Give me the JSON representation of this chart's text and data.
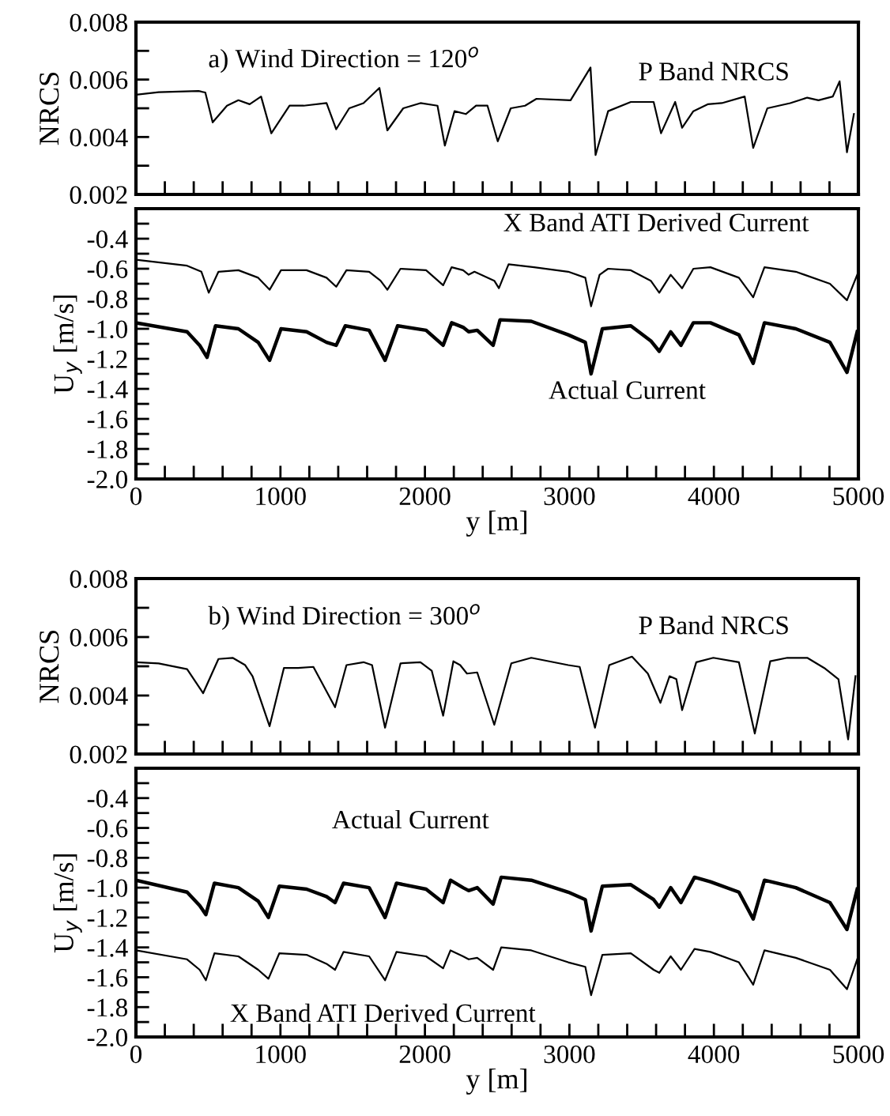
{
  "chart_data": [
    {
      "type": "line",
      "title": "a) Wind Direction = 120$^{o}$",
      "ylabel": "NRCS",
      "tick_labels": "y",
      "xlim": [
        0,
        5000
      ],
      "xticks": [
        0,
        {
          "value": 200,
          "label": null
        },
        {
          "value": 400,
          "label": null
        },
        {
          "value": 600,
          "label": null
        },
        {
          "value": 800,
          "label": null
        },
        1000,
        {
          "value": 1200,
          "label": null
        },
        {
          "value": 1400,
          "label": null
        },
        {
          "value": 1600,
          "label": null
        },
        {
          "value": 1800,
          "label": null
        },
        2000,
        {
          "value": 2200,
          "label": null
        },
        {
          "value": 2400,
          "label": null
        },
        {
          "value": 2600,
          "label": null
        },
        {
          "value": 2800,
          "label": null
        },
        3000,
        {
          "value": 3200,
          "label": null
        },
        {
          "value": 3400,
          "label": null
        },
        {
          "value": 3600,
          "label": null
        },
        {
          "value": 3800,
          "label": null
        },
        4000,
        {
          "value": 4200,
          "label": null
        },
        {
          "value": 4400,
          "label": null
        },
        {
          "value": 4600,
          "label": null
        },
        {
          "value": 4800,
          "label": null
        },
        5000
      ],
      "ylim": [
        0.002,
        0.008
      ],
      "yticks": [
        0.002,
        {
          "value": 0.003,
          "label": null
        },
        0.004,
        {
          "value": 0.005,
          "label": null
        },
        0.006,
        {
          "value": 0.007,
          "label": null
        },
        0.008
      ],
      "series": [
        {
          "name": "P Band NRCS",
          "color": "#000000",
          "x": [
            0,
            157,
            433,
            480,
            531,
            630,
            709,
            787,
            866,
            937,
            1063,
            1161,
            1319,
            1386,
            1476,
            1575,
            1685,
            1740,
            1850,
            1969,
            2087,
            2138,
            2205,
            2283,
            2354,
            2433,
            2504,
            2594,
            2693,
            2772,
            3008,
            3146,
            3181,
            3268,
            3425,
            3583,
            3634,
            3732,
            3780,
            3858,
            3957,
            4055,
            4213,
            4272,
            4370,
            4528,
            4646,
            4724,
            4823,
            4870,
            4921,
            4969
          ],
          "values": [
            0.00547,
            0.00556,
            0.0056,
            0.00555,
            0.00451,
            0.00509,
            0.00528,
            0.00514,
            0.00541,
            0.00413,
            0.00509,
            0.00509,
            0.00518,
            0.00427,
            0.005,
            0.00518,
            0.00571,
            0.00423,
            0.005,
            0.00518,
            0.00509,
            0.0037,
            0.0049,
            0.0048,
            0.00509,
            0.00509,
            0.00385,
            0.005,
            0.00509,
            0.00533,
            0.00528,
            0.00642,
            0.00337,
            0.0049,
            0.00522,
            0.00522,
            0.00413,
            0.00522,
            0.00432,
            0.0049,
            0.00514,
            0.00518,
            0.00541,
            0.00362,
            0.005,
            0.00518,
            0.00537,
            0.00528,
            0.00541,
            0.00594,
            0.00347,
            0.0048
          ]
        }
      ]
    },
    {
      "type": "line",
      "xlabel": "y [m]",
      "ylabel": "U$_{y}$ [m/s]",
      "xlim": [
        0,
        5000
      ],
      "xticks": [
        0,
        {
          "value": 200,
          "label": null
        },
        {
          "value": 400,
          "label": null
        },
        {
          "value": 600,
          "label": null
        },
        {
          "value": 800,
          "label": null
        },
        1000,
        {
          "value": 1200,
          "label": null
        },
        {
          "value": 1400,
          "label": null
        },
        {
          "value": 1600,
          "label": null
        },
        {
          "value": 1800,
          "label": null
        },
        2000,
        {
          "value": 2200,
          "label": null
        },
        {
          "value": 2400,
          "label": null
        },
        {
          "value": 2600,
          "label": null
        },
        {
          "value": 2800,
          "label": null
        },
        3000,
        {
          "value": 3200,
          "label": null
        },
        {
          "value": 3400,
          "label": null
        },
        {
          "value": 3600,
          "label": null
        },
        {
          "value": 3800,
          "label": null
        },
        4000,
        {
          "value": 4200,
          "label": null
        },
        {
          "value": 4400,
          "label": null
        },
        {
          "value": 4600,
          "label": null
        },
        {
          "value": 4800,
          "label": null
        },
        5000
      ],
      "ylim": [
        -2.0,
        -0.2
      ],
      "yticks": [
        {
          "value": -2.0,
          "label": "-2.0"
        },
        {
          "value": -1.9,
          "label": null
        },
        -1.8,
        {
          "value": -1.7,
          "label": null
        },
        -1.6,
        {
          "value": -1.5,
          "label": null
        },
        -1.4,
        {
          "value": -1.3,
          "label": null
        },
        -1.2,
        {
          "value": -1.1,
          "label": null
        },
        {
          "value": -1.0,
          "label": "-1.0"
        },
        {
          "value": -0.9,
          "label": null
        },
        -0.8,
        {
          "value": -0.7,
          "label": null
        },
        -0.6,
        {
          "value": -0.5,
          "label": null
        },
        -0.4,
        {
          "value": -0.3,
          "label": null
        }
      ],
      "series": [
        {
          "name": "X Band ATI Derived Current",
          "color": "#000000",
          "x": [
            0,
            354,
            453,
            504,
            571,
            709,
            846,
            925,
            1004,
            1181,
            1319,
            1386,
            1457,
            1614,
            1693,
            1740,
            1831,
            2008,
            2126,
            2185,
            2264,
            2303,
            2343,
            2480,
            2512,
            2579,
            2756,
            2992,
            3110,
            3150,
            3209,
            3268,
            3425,
            3563,
            3622,
            3701,
            3780,
            3858,
            3976,
            4173,
            4272,
            4350,
            4567,
            4803,
            4921,
            4992
          ],
          "values": [
            -0.54,
            -0.58,
            -0.62,
            -0.76,
            -0.62,
            -0.61,
            -0.66,
            -0.74,
            -0.61,
            -0.61,
            -0.66,
            -0.72,
            -0.61,
            -0.62,
            -0.68,
            -0.74,
            -0.6,
            -0.61,
            -0.71,
            -0.59,
            -0.61,
            -0.64,
            -0.62,
            -0.68,
            -0.73,
            -0.57,
            -0.59,
            -0.62,
            -0.66,
            -0.85,
            -0.64,
            -0.6,
            -0.61,
            -0.68,
            -0.76,
            -0.64,
            -0.73,
            -0.6,
            -0.59,
            -0.66,
            -0.79,
            -0.59,
            -0.62,
            -0.7,
            -0.81,
            -0.64
          ]
        },
        {
          "name": "Actual Current",
          "color": "#000000",
          "x": [
            0,
            354,
            441,
            492,
            551,
            709,
            846,
            925,
            1004,
            1181,
            1319,
            1386,
            1449,
            1614,
            1724,
            1811,
            2008,
            2126,
            2185,
            2264,
            2303,
            2362,
            2472,
            2520,
            2736,
            2992,
            3110,
            3150,
            3228,
            3425,
            3563,
            3622,
            3701,
            3772,
            3858,
            3976,
            4173,
            4272,
            4350,
            4567,
            4803,
            4921,
            4992
          ],
          "values": [
            -0.96,
            -1.02,
            -1.11,
            -1.19,
            -0.98,
            -1.0,
            -1.09,
            -1.21,
            -1.0,
            -1.02,
            -1.09,
            -1.11,
            -0.98,
            -1.01,
            -1.21,
            -0.98,
            -1.01,
            -1.11,
            -0.96,
            -0.99,
            -1.02,
            -1.01,
            -1.11,
            -0.94,
            -0.95,
            -1.04,
            -1.09,
            -1.3,
            -1.0,
            -0.98,
            -1.08,
            -1.15,
            -1.02,
            -1.11,
            -0.96,
            -0.96,
            -1.04,
            -1.23,
            -0.96,
            -1.0,
            -1.09,
            -1.29,
            -1.02
          ]
        }
      ]
    },
    {
      "type": "line",
      "title": "b) Wind Direction = 300$^{o}$",
      "ylabel": "NRCS",
      "tick_labels": "y",
      "xlim": [
        0,
        5000
      ],
      "xticks": [
        0,
        {
          "value": 200,
          "label": null
        },
        {
          "value": 400,
          "label": null
        },
        {
          "value": 600,
          "label": null
        },
        {
          "value": 800,
          "label": null
        },
        1000,
        {
          "value": 1200,
          "label": null
        },
        {
          "value": 1400,
          "label": null
        },
        {
          "value": 1600,
          "label": null
        },
        {
          "value": 1800,
          "label": null
        },
        2000,
        {
          "value": 2200,
          "label": null
        },
        {
          "value": 2400,
          "label": null
        },
        {
          "value": 2600,
          "label": null
        },
        {
          "value": 2800,
          "label": null
        },
        3000,
        {
          "value": 3200,
          "label": null
        },
        {
          "value": 3400,
          "label": null
        },
        {
          "value": 3600,
          "label": null
        },
        {
          "value": 3800,
          "label": null
        },
        4000,
        {
          "value": 4200,
          "label": null
        },
        {
          "value": 4400,
          "label": null
        },
        {
          "value": 4600,
          "label": null
        },
        {
          "value": 4800,
          "label": null
        },
        5000
      ],
      "ylim": [
        0.002,
        0.008
      ],
      "yticks": [
        0.002,
        {
          "value": 0.003,
          "label": null
        },
        0.004,
        {
          "value": 0.005,
          "label": null
        },
        0.006,
        {
          "value": 0.007,
          "label": null
        },
        0.008
      ],
      "series": [
        {
          "name": "P Band NRCS",
          "color": "#000000",
          "x": [
            0,
            157,
            354,
            465,
            571,
            669,
            756,
            807,
            925,
            1024,
            1122,
            1228,
            1378,
            1457,
            1575,
            1634,
            1724,
            1831,
            1969,
            2047,
            2126,
            2197,
            2244,
            2291,
            2362,
            2480,
            2598,
            2736,
            2992,
            3071,
            3177,
            3276,
            3433,
            3543,
            3630,
            3693,
            3740,
            3780,
            3878,
            3996,
            4173,
            4283,
            4390,
            4508,
            4646,
            4764,
            4862,
            4929,
            4980
          ],
          "values": [
            0.00514,
            0.0051,
            0.0049,
            0.00408,
            0.00525,
            0.00529,
            0.00504,
            0.00466,
            0.00295,
            0.00494,
            0.00494,
            0.00498,
            0.0036,
            0.00504,
            0.00514,
            0.00504,
            0.0029,
            0.0051,
            0.00514,
            0.00485,
            0.00331,
            0.00517,
            0.00504,
            0.00475,
            0.00479,
            0.003,
            0.0051,
            0.00529,
            0.00504,
            0.00498,
            0.0029,
            0.00504,
            0.00533,
            0.00475,
            0.00375,
            0.00466,
            0.00456,
            0.0035,
            0.00514,
            0.00529,
            0.00514,
            0.0027,
            0.00517,
            0.00529,
            0.00529,
            0.00494,
            0.00456,
            0.0025,
            0.00466
          ]
        }
      ]
    },
    {
      "type": "line",
      "xlabel": "y [m]",
      "ylabel": "U$_{y}$ [m/s]",
      "xlim": [
        0,
        5000
      ],
      "xticks": [
        0,
        {
          "value": 200,
          "label": null
        },
        {
          "value": 400,
          "label": null
        },
        {
          "value": 600,
          "label": null
        },
        {
          "value": 800,
          "label": null
        },
        1000,
        {
          "value": 1200,
          "label": null
        },
        {
          "value": 1400,
          "label": null
        },
        {
          "value": 1600,
          "label": null
        },
        {
          "value": 1800,
          "label": null
        },
        2000,
        {
          "value": 2200,
          "label": null
        },
        {
          "value": 2400,
          "label": null
        },
        {
          "value": 2600,
          "label": null
        },
        {
          "value": 2800,
          "label": null
        },
        3000,
        {
          "value": 3200,
          "label": null
        },
        {
          "value": 3400,
          "label": null
        },
        {
          "value": 3600,
          "label": null
        },
        {
          "value": 3800,
          "label": null
        },
        4000,
        {
          "value": 4200,
          "label": null
        },
        {
          "value": 4400,
          "label": null
        },
        {
          "value": 4600,
          "label": null
        },
        {
          "value": 4800,
          "label": null
        },
        5000
      ],
      "ylim": [
        -2.0,
        -0.2
      ],
      "yticks": [
        {
          "value": -2.0,
          "label": "-2.0"
        },
        {
          "value": -1.9,
          "label": null
        },
        -1.8,
        {
          "value": -1.7,
          "label": null
        },
        -1.6,
        {
          "value": -1.5,
          "label": null
        },
        -1.4,
        {
          "value": -1.3,
          "label": null
        },
        -1.2,
        {
          "value": -1.1,
          "label": null
        },
        {
          "value": -1.0,
          "label": "-1.0"
        },
        {
          "value": -0.9,
          "label": null
        },
        -0.8,
        {
          "value": -0.7,
          "label": null
        },
        -0.6,
        {
          "value": -0.5,
          "label": null
        },
        -0.4,
        {
          "value": -0.3,
          "label": null
        }
      ],
      "series": [
        {
          "name": "X Band ATI Derived Current",
          "color": "#000000",
          "x": [
            0,
            354,
            441,
            484,
            543,
            709,
            846,
            917,
            992,
            1181,
            1319,
            1378,
            1437,
            1614,
            1724,
            1803,
            2008,
            2126,
            2177,
            2264,
            2303,
            2362,
            2472,
            2528,
            2736,
            2992,
            3110,
            3150,
            3228,
            3425,
            3583,
            3622,
            3701,
            3772,
            3866,
            3976,
            4173,
            4272,
            4350,
            4567,
            4803,
            4921,
            4992
          ],
          "values": [
            -1.42,
            -1.48,
            -1.55,
            -1.62,
            -1.44,
            -1.46,
            -1.55,
            -1.61,
            -1.44,
            -1.45,
            -1.51,
            -1.55,
            -1.43,
            -1.46,
            -1.62,
            -1.43,
            -1.46,
            -1.54,
            -1.42,
            -1.46,
            -1.48,
            -1.47,
            -1.55,
            -1.4,
            -1.42,
            -1.5,
            -1.53,
            -1.72,
            -1.45,
            -1.44,
            -1.55,
            -1.57,
            -1.46,
            -1.55,
            -1.41,
            -1.43,
            -1.5,
            -1.65,
            -1.42,
            -1.47,
            -1.55,
            -1.68,
            -1.48
          ]
        },
        {
          "name": "Actual Current",
          "color": "#000000",
          "x": [
            0,
            354,
            441,
            484,
            543,
            709,
            846,
            917,
            992,
            1181,
            1319,
            1378,
            1437,
            1614,
            1724,
            1803,
            2008,
            2126,
            2177,
            2264,
            2303,
            2362,
            2472,
            2528,
            2736,
            2992,
            3110,
            3150,
            3228,
            3425,
            3583,
            3622,
            3701,
            3772,
            3866,
            3976,
            4173,
            4272,
            4350,
            4567,
            4803,
            4921,
            4992
          ],
          "values": [
            -0.95,
            -1.03,
            -1.12,
            -1.18,
            -0.97,
            -1.0,
            -1.09,
            -1.2,
            -0.99,
            -1.01,
            -1.06,
            -1.1,
            -0.97,
            -1.0,
            -1.2,
            -0.97,
            -1.01,
            -1.1,
            -0.95,
            -1.0,
            -1.02,
            -1.0,
            -1.11,
            -0.93,
            -0.95,
            -1.03,
            -1.08,
            -1.29,
            -0.99,
            -0.98,
            -1.08,
            -1.13,
            -1.0,
            -1.1,
            -0.93,
            -0.96,
            -1.03,
            -1.21,
            -0.95,
            -1.0,
            -1.1,
            -1.28,
            -1.01
          ]
        }
      ]
    }
  ]
}
